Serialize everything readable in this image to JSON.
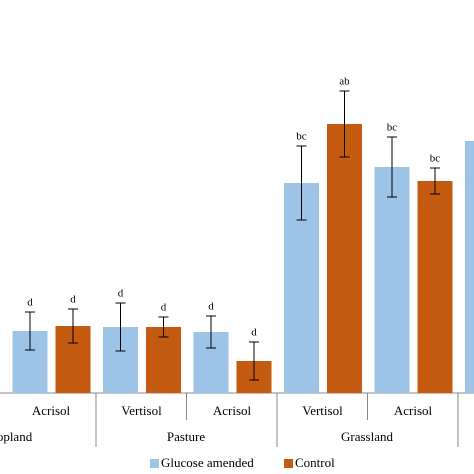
{
  "chart_data": {
    "type": "bar",
    "categories": [
      "Acrisol",
      "Vertisol",
      "Acrisol",
      "Vertisol",
      "Acrisol",
      null
    ],
    "groups": [
      "Cropland",
      "Pasture",
      "Grassland"
    ],
    "series": [
      {
        "name": "Glucose amended",
        "color": "#9dc3e6",
        "values": [
          62,
          66,
          61,
          210,
          226,
          252
        ],
        "errors": [
          19,
          24,
          16,
          37,
          30,
          null
        ],
        "letters": [
          "d",
          "d",
          "d",
          "bc",
          "bc",
          null
        ]
      },
      {
        "name": "Control",
        "color": "#c55a11",
        "values": [
          67,
          66,
          32,
          269,
          212,
          null
        ],
        "errors": [
          17,
          10,
          19,
          33,
          13,
          null
        ],
        "letters": [
          "d",
          "d",
          "d",
          "ab",
          "bc",
          null
        ]
      }
    ],
    "ylim": [
      0,
      393
    ]
  }
}
